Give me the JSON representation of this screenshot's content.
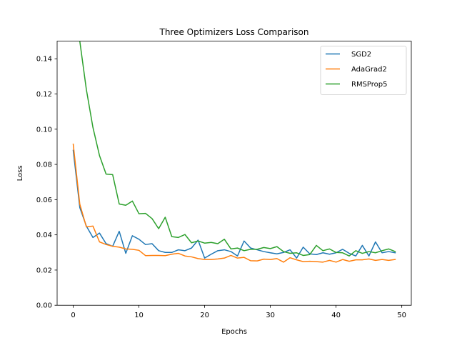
{
  "chart_data": {
    "type": "line",
    "title": "Three Optimizers Loss Comparison",
    "xlabel": "Epochs",
    "ylabel": "Loss",
    "xlim": [
      -2.45,
      51.45
    ],
    "ylim": [
      0.0,
      0.15
    ],
    "xticks": [
      0,
      10,
      20,
      30,
      40,
      50
    ],
    "xtick_labels": [
      "0",
      "10",
      "20",
      "30",
      "40",
      "50"
    ],
    "yticks": [
      0.0,
      0.02,
      0.04,
      0.06,
      0.08,
      0.1,
      0.12,
      0.14
    ],
    "ytick_labels": [
      "0.00",
      "0.02",
      "0.04",
      "0.06",
      "0.08",
      "0.10",
      "0.12",
      "0.14"
    ],
    "grid": false,
    "legend_position": "top-right",
    "x": [
      0,
      1,
      2,
      3,
      4,
      5,
      6,
      7,
      8,
      9,
      10,
      11,
      12,
      13,
      14,
      15,
      16,
      17,
      18,
      19,
      20,
      21,
      22,
      23,
      24,
      25,
      26,
      27,
      28,
      29,
      30,
      31,
      32,
      33,
      34,
      35,
      36,
      37,
      38,
      39,
      40,
      41,
      42,
      43,
      44,
      45,
      46,
      47,
      48,
      49
    ],
    "series": [
      {
        "name": "SGD2",
        "color": "#1f77b4",
        "values": [
          0.088,
          0.0555,
          0.045,
          0.0385,
          0.041,
          0.035,
          0.0335,
          0.042,
          0.0295,
          0.0395,
          0.0375,
          0.0345,
          0.035,
          0.031,
          0.03,
          0.03,
          0.0315,
          0.031,
          0.0325,
          0.037,
          0.0268,
          0.029,
          0.031,
          0.0315,
          0.0305,
          0.028,
          0.0365,
          0.0325,
          0.0315,
          0.0305,
          0.0298,
          0.0292,
          0.03,
          0.0315,
          0.0268,
          0.033,
          0.0292,
          0.0288,
          0.0298,
          0.029,
          0.0298,
          0.0318,
          0.0295,
          0.028,
          0.034,
          0.028,
          0.036,
          0.0298,
          0.0305,
          0.0298
        ]
      },
      {
        "name": "AdaGrad2",
        "color": "#ff7f0e",
        "values": [
          0.0915,
          0.0575,
          0.0445,
          0.045,
          0.036,
          0.0345,
          0.0335,
          0.033,
          0.032,
          0.0318,
          0.0312,
          0.0282,
          0.0283,
          0.0283,
          0.0282,
          0.029,
          0.0295,
          0.028,
          0.0275,
          0.0265,
          0.026,
          0.026,
          0.0263,
          0.0268,
          0.0283,
          0.0268,
          0.0272,
          0.0253,
          0.0252,
          0.0262,
          0.026,
          0.0265,
          0.0245,
          0.027,
          0.0258,
          0.0248,
          0.025,
          0.0248,
          0.0245,
          0.0255,
          0.0245,
          0.026,
          0.025,
          0.0258,
          0.0258,
          0.0263,
          0.0255,
          0.026,
          0.0255,
          0.026
        ]
      },
      {
        "name": "RMSProp5",
        "color": "#2ca02c",
        "values": [
          0.161,
          0.15,
          0.1225,
          0.101,
          0.085,
          0.0745,
          0.0742,
          0.0575,
          0.0568,
          0.0592,
          0.052,
          0.0522,
          0.0492,
          0.0435,
          0.05,
          0.039,
          0.0385,
          0.0402,
          0.0355,
          0.0365,
          0.0353,
          0.0357,
          0.035,
          0.0375,
          0.032,
          0.0325,
          0.031,
          0.0318,
          0.0318,
          0.0328,
          0.0322,
          0.0333,
          0.0305,
          0.0295,
          0.0298,
          0.0283,
          0.0288,
          0.034,
          0.031,
          0.032,
          0.03,
          0.0298,
          0.028,
          0.031,
          0.0295,
          0.0305,
          0.0298,
          0.031,
          0.032,
          0.0305
        ]
      }
    ]
  }
}
